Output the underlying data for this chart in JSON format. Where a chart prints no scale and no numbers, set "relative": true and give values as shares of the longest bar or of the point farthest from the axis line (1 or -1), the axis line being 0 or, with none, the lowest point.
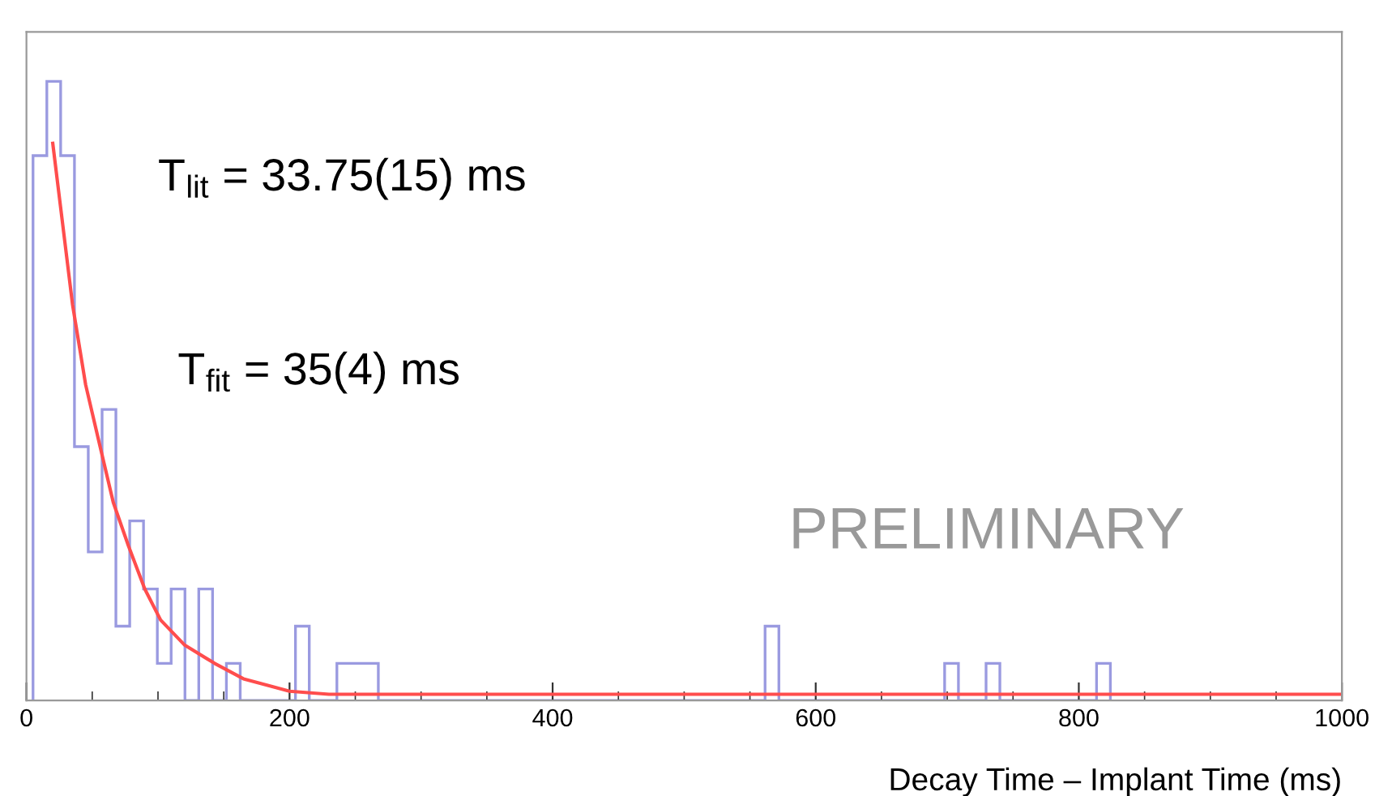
{
  "chart_data": {
    "type": "histogram",
    "relative": true,
    "xlabel": "Decay Time – Implant Time (ms)",
    "xlim": [
      0,
      1000
    ],
    "xticks": [
      0,
      200,
      400,
      600,
      800,
      1000
    ],
    "grid": false,
    "legend": false,
    "annotations": [
      "T$_{lit}$ = 33.75(15) ms",
      "T$_{fit}$ = 35(4) ms",
      "PRELIMINARY"
    ],
    "series": [
      {
        "color": "#9a9ae0",
        "bins": [
          5,
          15.5,
          26,
          36.5,
          47,
          57.5,
          68,
          78.5,
          89,
          99.5,
          110,
          120.5,
          131,
          141.5,
          152,
          162.5,
          204.5,
          215,
          236,
          246.5,
          257,
          267.5,
          561.5,
          572,
          698,
          708.5,
          729.5,
          740,
          813.5,
          824
        ],
        "values": [
          0.88,
          1,
          0.88,
          0.41,
          0.24,
          0.47,
          0.12,
          0.29,
          0.18,
          0.06,
          0.18,
          0,
          0.18,
          0,
          0.06,
          0,
          0.12,
          0,
          0.06,
          0.06,
          0.06,
          0,
          0.12,
          0,
          0.06,
          0,
          0.06,
          0,
          0.06
        ]
      },
      {
        "type": "line",
        "color": "#ff4d4d",
        "x": [
          20,
          35,
          45,
          56,
          66,
          77.5,
          90,
          102,
          120,
          143,
          165,
          184,
          200,
          230,
          270,
          320,
          400,
          1000
        ],
        "values": [
          0.9,
          0.64,
          0.51,
          0.41,
          0.32,
          0.25,
          0.18,
          0.13,
          0.09,
          0.06,
          0.035,
          0.024,
          0.015,
          0.01,
          0.01,
          0.01,
          0.01,
          0.01
        ]
      }
    ]
  }
}
